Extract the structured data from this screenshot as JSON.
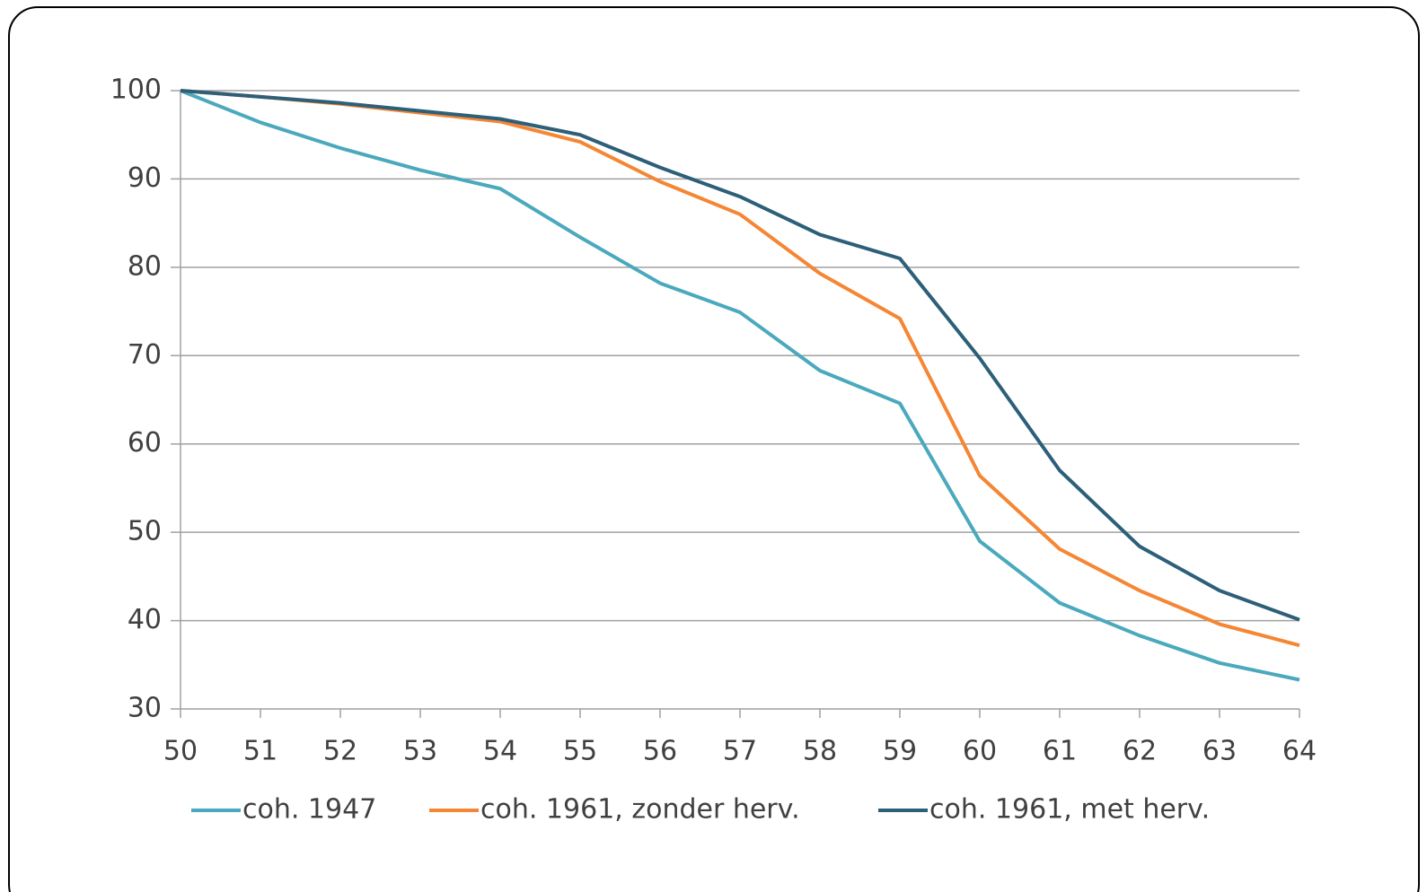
{
  "chart_data": {
    "type": "line",
    "x": [
      50,
      51,
      52,
      53,
      54,
      55,
      56,
      57,
      58,
      59,
      60,
      61,
      62,
      63,
      64
    ],
    "xlim": [
      50,
      64
    ],
    "xticks": [
      50,
      51,
      52,
      53,
      54,
      55,
      56,
      57,
      58,
      59,
      60,
      61,
      62,
      63,
      64
    ],
    "ylim": [
      30,
      100
    ],
    "yticks": [
      30,
      40,
      50,
      60,
      70,
      80,
      90,
      100
    ],
    "grid": true,
    "legend": "bottom",
    "series": [
      {
        "name": "coh. 1947",
        "color": "#4aa9bd",
        "values": [
          100,
          96.4,
          93.5,
          91,
          88.9,
          83.4,
          78.2,
          74.9,
          68.3,
          64.6,
          49,
          42,
          38.3,
          35.2,
          33.3
        ]
      },
      {
        "name": "coh. 1961, zonder herv.",
        "color": "#f58634",
        "values": [
          100,
          99.3,
          98.5,
          97.5,
          96.5,
          94.2,
          89.7,
          86,
          79.3,
          74.2,
          56.4,
          48.1,
          43.4,
          39.6,
          37.2
        ]
      },
      {
        "name": "coh. 1961, met herv.",
        "color": "#2d5f79",
        "values": [
          100,
          99.3,
          98.6,
          97.7,
          96.8,
          95,
          91.3,
          88,
          83.7,
          81,
          69.7,
          57,
          48.4,
          43.4,
          40.1
        ]
      }
    ]
  }
}
